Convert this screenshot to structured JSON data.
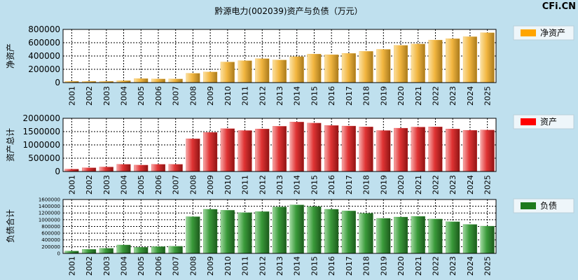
{
  "title": "黔源电力(002039)资产与负债（万元）",
  "watermark": "CFi.CN",
  "colors": {
    "background": "#bfe0ee",
    "plot_background": "#ffffff",
    "net_assets": "#f0b43c",
    "net_assets_legend": "#ffa500",
    "assets": "#e63c3c",
    "assets_legend": "#ff0000",
    "liabilities": "#3a9a3a",
    "liabilities_legend": "#1e7a1e"
  },
  "chart_data": [
    {
      "type": "bar",
      "ylabel": "净资产",
      "legend": "净资产",
      "categories": [
        "2001",
        "2002",
        "2003",
        "2004",
        "2005",
        "2006",
        "2007",
        "2008",
        "2009",
        "2010",
        "2011",
        "2012",
        "2013",
        "2014",
        "2015",
        "2016",
        "2017",
        "2018",
        "2019",
        "2020",
        "2021",
        "2022",
        "2023",
        "2024",
        "2025"
      ],
      "values": [
        20000,
        20000,
        20000,
        30000,
        60000,
        55000,
        55000,
        140000,
        160000,
        310000,
        330000,
        360000,
        340000,
        390000,
        430000,
        420000,
        440000,
        470000,
        500000,
        560000,
        580000,
        640000,
        660000,
        690000,
        750000
      ],
      "yticks": [
        0,
        200000,
        400000,
        600000,
        800000
      ],
      "ytick_labels": [
        "0",
        "200000",
        "400000",
        "600000",
        "800000"
      ],
      "ylim": [
        0,
        800000
      ]
    },
    {
      "type": "bar",
      "ylabel": "资产总计",
      "legend": "资产",
      "categories": [
        "2001",
        "2002",
        "2003",
        "2004",
        "2005",
        "2006",
        "2007",
        "2008",
        "2009",
        "2010",
        "2011",
        "2012",
        "2013",
        "2014",
        "2015",
        "2016",
        "2017",
        "2018",
        "2019",
        "2020",
        "2021",
        "2022",
        "2023",
        "2024",
        "2025"
      ],
      "values": [
        90000,
        140000,
        170000,
        270000,
        240000,
        270000,
        270000,
        1230000,
        1470000,
        1610000,
        1540000,
        1600000,
        1700000,
        1860000,
        1820000,
        1730000,
        1710000,
        1680000,
        1540000,
        1630000,
        1670000,
        1680000,
        1600000,
        1550000,
        1560000
      ],
      "yticks": [
        0,
        500000,
        1000000,
        1500000,
        2000000
      ],
      "ytick_labels": [
        "0",
        "500000",
        "1000000",
        "1500000",
        "2000000"
      ],
      "ylim": [
        0,
        2000000
      ]
    },
    {
      "type": "bar",
      "ylabel": "负债合计",
      "legend": "负债",
      "categories": [
        "2001",
        "2002",
        "2003",
        "2004",
        "2005",
        "2006",
        "2007",
        "2008",
        "2009",
        "2010",
        "2011",
        "2012",
        "2013",
        "2014",
        "2015",
        "2016",
        "2017",
        "2018",
        "2019",
        "2020",
        "2021",
        "2022",
        "2023",
        "2024",
        "2025"
      ],
      "values": [
        70000,
        120000,
        150000,
        250000,
        180000,
        200000,
        210000,
        1090000,
        1310000,
        1280000,
        1210000,
        1240000,
        1380000,
        1440000,
        1390000,
        1310000,
        1260000,
        1190000,
        1040000,
        1080000,
        1100000,
        1020000,
        940000,
        860000,
        810000
      ],
      "yticks": [
        0,
        200000,
        400000,
        600000,
        800000,
        1000000,
        1200000,
        1400000,
        1600000
      ],
      "ytick_labels": [
        "0",
        "200000",
        "400000",
        "600000",
        "800000",
        "1000000",
        "1200000",
        "1400000",
        "1600000"
      ],
      "ylim": [
        0,
        1600000
      ]
    }
  ]
}
